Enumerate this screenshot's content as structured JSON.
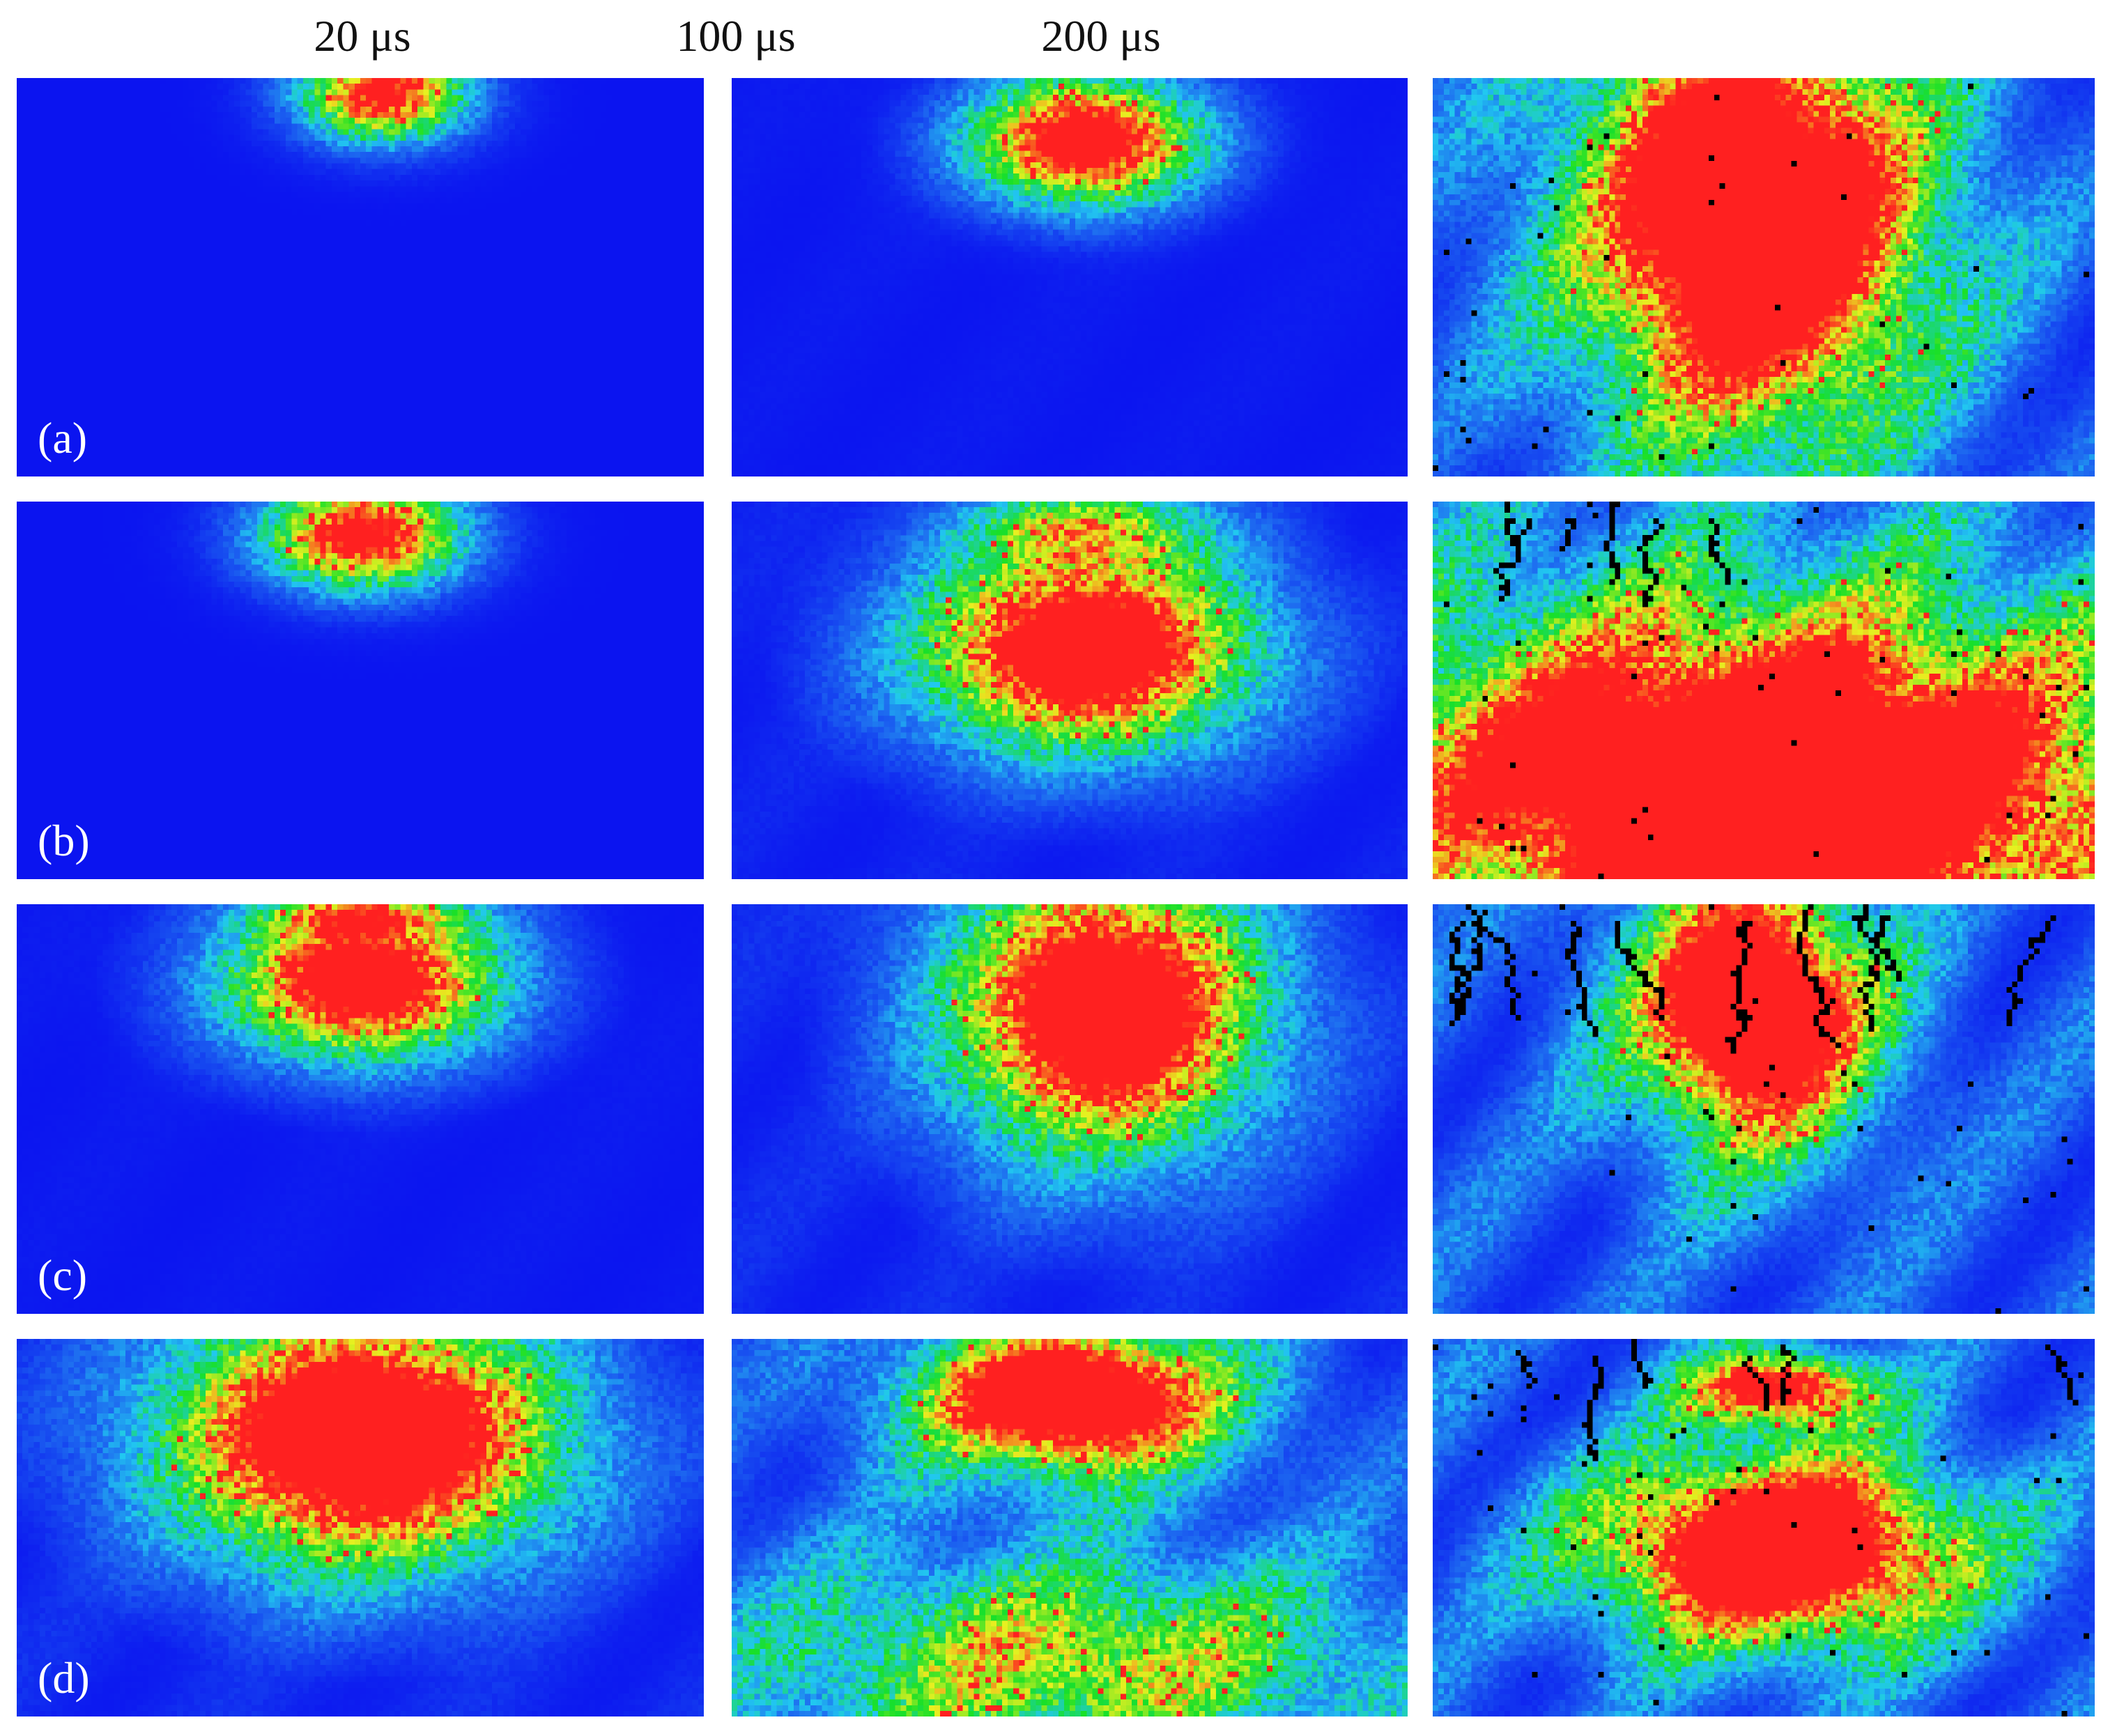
{
  "column_titles": [
    "20 μs",
    "100 μs",
    "200 μs"
  ],
  "row_labels": [
    "(a)",
    "(b)",
    "(c)",
    "(d)"
  ],
  "colors": {
    "background_field": "#0b14f0",
    "cyan": "#21c8f0",
    "green": "#18e028",
    "yellow": "#e8f020",
    "red": "#ff2020",
    "crack": "#000000"
  },
  "panels": [
    [
      {
        "level": "low",
        "pattern": "small top spot"
      },
      {
        "level": "medium",
        "pattern": "top oval"
      },
      {
        "level": "high",
        "pattern": "large fan with scattered cracks"
      }
    ],
    [
      {
        "level": "low",
        "pattern": "small top spot"
      },
      {
        "level": "medium",
        "pattern": "lower oval with upper reflection"
      },
      {
        "level": "high",
        "pattern": "diffuse field with top cracks"
      }
    ],
    [
      {
        "level": "medium",
        "pattern": "top oval with halo"
      },
      {
        "level": "medium",
        "pattern": "top fan"
      },
      {
        "level": "high",
        "pattern": "cracked top with central plume"
      }
    ],
    [
      {
        "level": "medium",
        "pattern": "large top fan"
      },
      {
        "level": "high",
        "pattern": "wide diffuse field with central spot"
      },
      {
        "level": "high",
        "pattern": "double lobe with cracks"
      }
    ]
  ]
}
